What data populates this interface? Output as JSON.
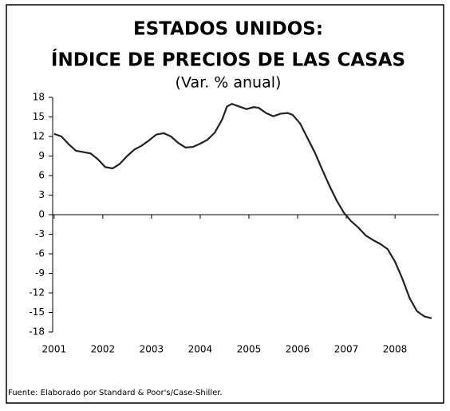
{
  "chart_data": {
    "type": "line",
    "title": "ESTADOS UNIDOS:",
    "subtitle": "ÍNDICE DE PRECIOS DE LAS CASAS",
    "y_label": "(Var. % anual)",
    "source": "Fuente: Elaborado por Standard & Poor's/Case-Shiller.",
    "x": [
      2001.0,
      2001.15,
      2001.3,
      2001.45,
      2001.6,
      2001.75,
      2001.9,
      2002.05,
      2002.2,
      2002.35,
      2002.5,
      2002.65,
      2002.8,
      2002.95,
      2003.1,
      2003.25,
      2003.4,
      2003.55,
      2003.7,
      2003.85,
      2004.0,
      2004.15,
      2004.3,
      2004.45,
      2004.55,
      2004.65,
      2004.8,
      2004.95,
      2005.1,
      2005.2,
      2005.35,
      2005.5,
      2005.65,
      2005.8,
      2005.9,
      2006.05,
      2006.2,
      2006.35,
      2006.5,
      2006.65,
      2006.8,
      2006.95,
      2007.1,
      2007.25,
      2007.4,
      2007.55,
      2007.7,
      2007.85,
      2008.0,
      2008.15,
      2008.3,
      2008.45,
      2008.6,
      2008.75
    ],
    "series": [
      {
        "name": "Índice",
        "color": "#222222",
        "values": [
          12.4,
          12.0,
          10.8,
          9.8,
          9.6,
          9.4,
          8.5,
          7.3,
          7.1,
          7.8,
          9.0,
          10.0,
          10.6,
          11.4,
          12.3,
          12.5,
          12.0,
          11.0,
          10.3,
          10.4,
          10.9,
          11.5,
          12.6,
          14.6,
          16.6,
          17.0,
          16.6,
          16.2,
          16.5,
          16.4,
          15.6,
          15.1,
          15.5,
          15.6,
          15.3,
          14.0,
          11.8,
          9.6,
          7.0,
          4.5,
          2.2,
          0.3,
          -1.0,
          -2.0,
          -3.2,
          -3.9,
          -4.5,
          -5.3,
          -7.2,
          -9.8,
          -12.8,
          -14.8,
          -15.6,
          -15.9
        ]
      }
    ],
    "xlim": [
      2000.97,
      2008.9
    ],
    "xticks": [
      2001,
      2002,
      2003,
      2004,
      2005,
      2006,
      2007,
      2008
    ],
    "ylim": [
      -18,
      18
    ],
    "yticks": [
      18,
      15,
      12,
      9,
      6,
      3,
      0,
      -3,
      -6,
      -9,
      -12,
      -15,
      -18
    ],
    "grid": false
  }
}
